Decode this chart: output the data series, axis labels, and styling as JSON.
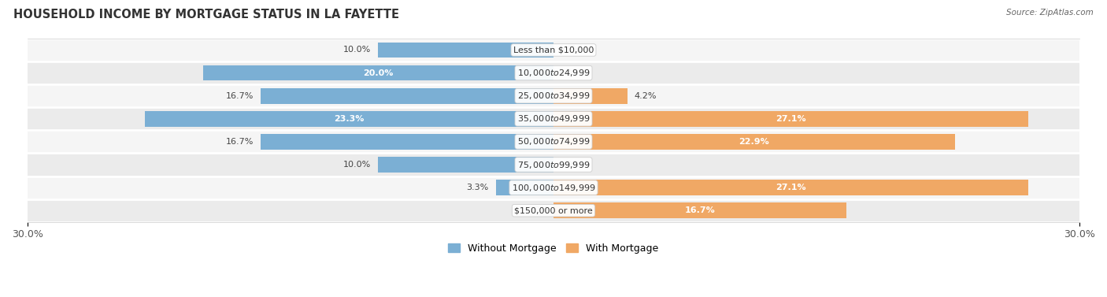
{
  "title": "HOUSEHOLD INCOME BY MORTGAGE STATUS IN LA FAYETTE",
  "source": "Source: ZipAtlas.com",
  "categories": [
    "Less than $10,000",
    "$10,000 to $24,999",
    "$25,000 to $34,999",
    "$35,000 to $49,999",
    "$50,000 to $74,999",
    "$75,000 to $99,999",
    "$100,000 to $149,999",
    "$150,000 or more"
  ],
  "without_mortgage": [
    10.0,
    20.0,
    16.7,
    23.3,
    16.7,
    10.0,
    3.3,
    0.0
  ],
  "with_mortgage": [
    0.0,
    0.0,
    4.2,
    27.1,
    22.9,
    0.0,
    27.1,
    16.7
  ],
  "color_without": "#7bafd4",
  "color_with": "#f0a865",
  "axis_limit": 30.0,
  "row_color_light": "#f5f5f5",
  "row_color_dark": "#ebebeb",
  "title_fontsize": 10.5,
  "label_fontsize": 8.0,
  "tick_fontsize": 9,
  "legend_fontsize": 9,
  "bar_height": 0.68
}
